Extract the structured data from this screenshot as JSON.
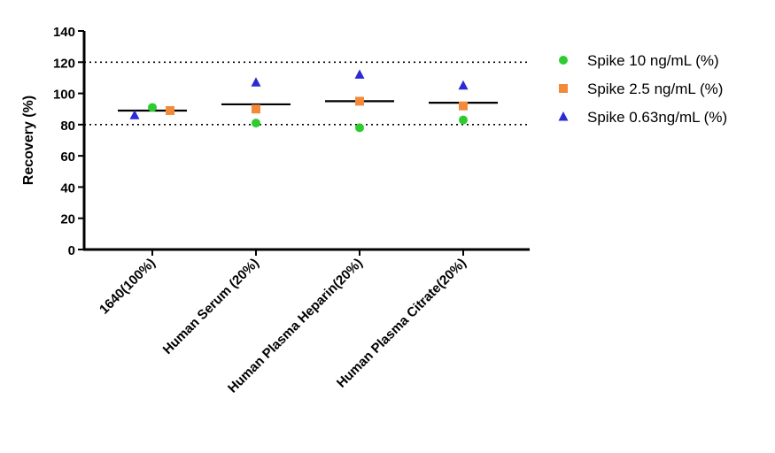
{
  "chart_data": {
    "type": "scatter",
    "ylabel": "Recovery (%)",
    "xlabel": "",
    "ylim": [
      0,
      140
    ],
    "yticks": [
      0,
      20,
      40,
      60,
      80,
      100,
      120,
      140
    ],
    "categories": [
      "1640(100%)",
      "Human Serum (20%)",
      "Human Plasma Heparin(20%)",
      "Human Plasma Citrate(20%)"
    ],
    "reference_lines": [
      80,
      120
    ],
    "means": [
      89,
      93,
      95,
      94
    ],
    "legend_position": "right",
    "series": [
      {
        "name": "Spike 10 ng/mL (%)",
        "marker": "circle",
        "color": "#2ecc2e",
        "values": [
          91,
          81,
          78,
          83
        ],
        "offsets": [
          0.0,
          0.0,
          0.0,
          0.0
        ]
      },
      {
        "name": "Spike 2.5 ng/mL (%)",
        "marker": "square",
        "color": "#f28a3a",
        "values": [
          89,
          90,
          95,
          92
        ],
        "offsets": [
          0.0,
          0.0,
          0.0,
          0.0
        ]
      },
      {
        "name": "Spike 0.63ng/mL (%)",
        "marker": "triangle",
        "color": "#2a2ad6",
        "values": [
          86,
          107,
          112,
          105
        ],
        "offsets": [
          0.0,
          0.0,
          0.0,
          0.0
        ]
      }
    ]
  }
}
